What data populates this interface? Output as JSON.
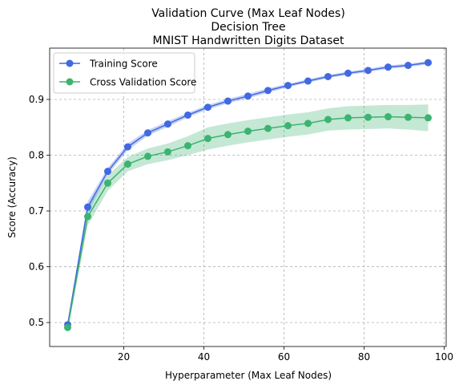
{
  "chart_data": {
    "type": "line",
    "title": [
      "Validation Curve (Max Leaf Nodes)",
      "Decision Tree",
      "MNIST Handwritten Digits Dataset"
    ],
    "xlabel": "Hyperparameter (Max Leaf Nodes)",
    "ylabel": "Score (Accuracy)",
    "xlim": [
      1.5,
      100.5
    ],
    "ylim": [
      0.457,
      0.992
    ],
    "xticks": [
      20,
      40,
      60,
      80,
      100
    ],
    "yticks": [
      0.5,
      0.6,
      0.7,
      0.8,
      0.9
    ],
    "grid": true,
    "legend_position": "top-left",
    "x": [
      6,
      11,
      16,
      21,
      26,
      31,
      36,
      41,
      46,
      51,
      56,
      61,
      66,
      71,
      76,
      81,
      86,
      91,
      96
    ],
    "series": [
      {
        "name": "Training Score",
        "color": "#4169e1",
        "values": [
          0.496,
          0.707,
          0.771,
          0.815,
          0.84,
          0.856,
          0.872,
          0.886,
          0.897,
          0.906,
          0.916,
          0.925,
          0.933,
          0.941,
          0.947,
          0.952,
          0.958,
          0.961,
          0.966
        ],
        "std": [
          0.003,
          0.01,
          0.006,
          0.006,
          0.005,
          0.005,
          0.004,
          0.004,
          0.004,
          0.004,
          0.004,
          0.003,
          0.003,
          0.003,
          0.003,
          0.003,
          0.003,
          0.003,
          0.003
        ]
      },
      {
        "name": "Cross Validation Score",
        "color": "#3cb371",
        "values": [
          0.491,
          0.69,
          0.75,
          0.784,
          0.798,
          0.806,
          0.817,
          0.83,
          0.837,
          0.843,
          0.848,
          0.853,
          0.857,
          0.864,
          0.867,
          0.868,
          0.869,
          0.868,
          0.867
        ],
        "std": [
          0.005,
          0.016,
          0.014,
          0.013,
          0.014,
          0.015,
          0.017,
          0.02,
          0.02,
          0.02,
          0.02,
          0.02,
          0.02,
          0.02,
          0.021,
          0.021,
          0.021,
          0.022,
          0.024
        ]
      }
    ]
  }
}
